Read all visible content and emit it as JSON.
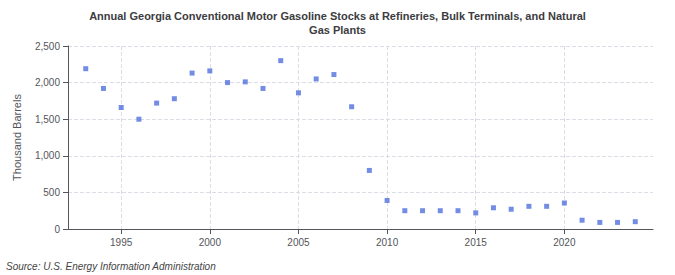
{
  "chart_data": {
    "type": "scatter",
    "title": "Annual Georgia Conventional Motor Gasoline Stocks at Refineries, Bulk Terminals, and Natural\nGas Plants",
    "ylabel": "Thousand Barrels",
    "annotations": [
      "Source: U.S. Energy Information Administration"
    ],
    "x": [
      1993,
      1994,
      1995,
      1996,
      1997,
      1998,
      1999,
      2000,
      2001,
      2002,
      2003,
      2004,
      2005,
      2006,
      2007,
      2008,
      2009,
      2010,
      2011,
      2012,
      2013,
      2014,
      2015,
      2016,
      2017,
      2018,
      2019,
      2020,
      2021,
      2022,
      2023,
      2024
    ],
    "values": [
      2190,
      1920,
      1660,
      1500,
      1720,
      1780,
      2130,
      2160,
      2000,
      2010,
      1920,
      2300,
      1860,
      2050,
      2110,
      1670,
      800,
      390,
      250,
      250,
      250,
      250,
      220,
      290,
      270,
      310,
      310,
      355,
      120,
      90,
      90,
      100
    ],
    "xlim": [
      1992,
      2025
    ],
    "xticks": [
      1995,
      2000,
      2005,
      2010,
      2015,
      2020
    ],
    "ylim": [
      0,
      2500
    ],
    "yticks": [
      0,
      500,
      {
        "value": 1000,
        "label": "1,000"
      },
      {
        "value": 1500,
        "label": "1,500"
      },
      {
        "value": 2000,
        "label": "2,000"
      },
      {
        "value": 2500,
        "label": "2,500"
      }
    ],
    "grid": true,
    "marker": "square"
  }
}
